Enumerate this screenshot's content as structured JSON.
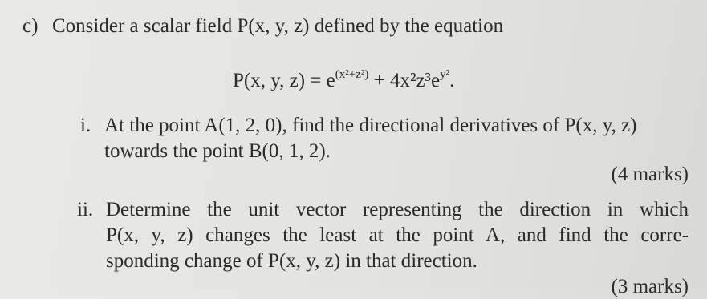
{
  "question": {
    "label": "c)",
    "intro": "Consider a scalar field P(x, y, z) defined by the equation",
    "equation": {
      "base": "P(x, y, z) = e",
      "exp1": "(x²+z²)",
      "middle": " + 4x²z³e",
      "exp2": "y²",
      "end": "."
    },
    "parts": [
      {
        "label": "i.",
        "lines": [
          "At the point A(1, 2, 0), find the directional derivatives of P(x, y, z)",
          "towards the point B(0, 1, 2)."
        ],
        "marks": "(4 marks)"
      },
      {
        "label": "ii.",
        "lines": [
          "Determine the unit vector representing the direction in which",
          "P(x, y, z) changes the least at the point A, and find the corre-",
          "sponding change of P(x, y, z) in that direction."
        ],
        "marks": "(3 marks)"
      }
    ]
  }
}
